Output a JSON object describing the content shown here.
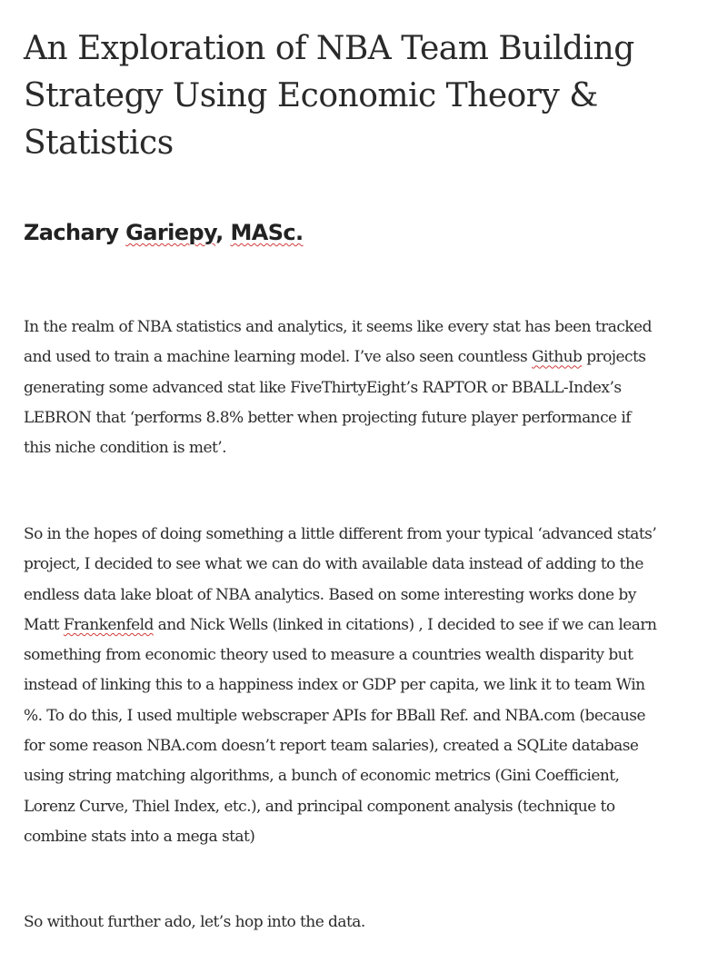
{
  "article": {
    "title": "An Exploration of NBA Team Building Strategy Using Economic Theory & Statistics",
    "author": {
      "first": "Zachary",
      "last": "Gariepy",
      "sep": ", ",
      "credential": "MASc."
    },
    "paragraph1": {
      "a": "In the realm of NBA statistics and analytics, it seems like every stat has been tracked and used to train a machine learning model. I’ve also seen countless ",
      "spell": "Github",
      "b": " projects generating some advanced stat like FiveThirtyEight’s RAPTOR or BBALL-Index’s LEBRON that ‘performs 8.8% better when projecting future player performance if this niche condition is met’."
    },
    "paragraph2": {
      "a": "So in the hopes of doing something a little different from your typical ‘advanced stats’ project, I decided to see what we can do with available data instead of adding to the endless data lake bloat of NBA analytics. Based on some interesting works done by Matt ",
      "spell": "Frankenfeld",
      "b": " and Nick Wells (linked in citations) , I decided to see if we can learn something from economic theory used to measure a countries wealth disparity but instead of linking this to a happiness index or GDP per capita, we link it to team Win %. To do this, I used multiple webscraper APIs for BBall Ref. and NBA.com (because for some reason NBA.com doesn’t report team salaries), created a SQLite database using string matching algorithms, a bunch of economic metrics (Gini Coefficient, Lorenz Curve, Thiel Index, etc.), and principal component analysis (technique to combine stats into a mega stat)"
    },
    "paragraph3": "So without further ado, let’s hop into the data."
  }
}
